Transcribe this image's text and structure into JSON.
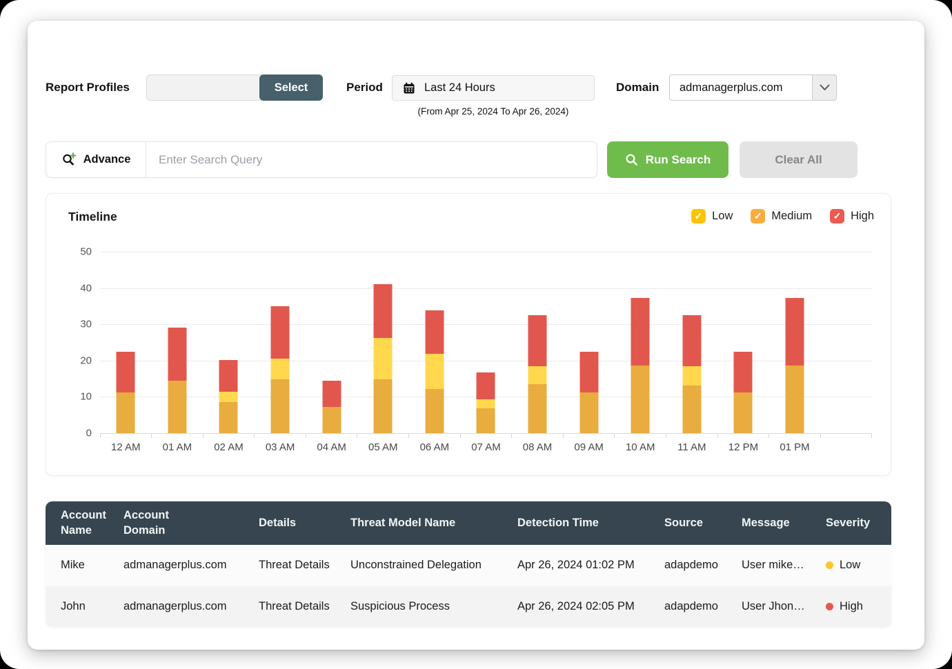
{
  "toolbar": {
    "report_profiles_label": "Report Profiles",
    "report_profiles_value": "",
    "select_button": "Select",
    "period_label": "Period",
    "period_value": "Last 24 Hours",
    "period_range": "(From Apr 25, 2024 To Apr 26, 2024)",
    "domain_label": "Domain",
    "domain_value": "admanagerplus.com"
  },
  "search": {
    "advance_label": "Advance",
    "placeholder": "Enter Search Query",
    "query_value": "",
    "run_button": "Run Search",
    "clear_button": "Clear All"
  },
  "chart_data": {
    "type": "bar",
    "stacked": true,
    "title": "Timeline",
    "categories": [
      "12 AM",
      "01 AM",
      "02 AM",
      "03 AM",
      "04 AM",
      "05 AM",
      "06 AM",
      "07 AM",
      "08 AM",
      "09 AM",
      "10 AM",
      "11 AM",
      "12 PM",
      "01 PM"
    ],
    "series": [
      {
        "name": "Low",
        "color": "#E9AC3F",
        "values": [
          11.2,
          14.5,
          8.5,
          14.8,
          7.2,
          14.8,
          12.2,
          6.8,
          13.5,
          11.3,
          18.7,
          13.2,
          11.3,
          18.7
        ]
      },
      {
        "name": "Medium",
        "color": "#FFD84D",
        "values": [
          0,
          0,
          3.0,
          5.7,
          0,
          11.4,
          9.6,
          2.5,
          5.0,
          0,
          0,
          5.3,
          0,
          0
        ]
      },
      {
        "name": "High",
        "color": "#E2574D",
        "values": [
          11.3,
          14.5,
          8.7,
          14.5,
          7.3,
          14.8,
          12.0,
          7.4,
          14.0,
          11.2,
          18.6,
          14.0,
          11.2,
          18.6
        ]
      }
    ],
    "legend": [
      {
        "label": "Low",
        "color": "#FFC400"
      },
      {
        "label": "Medium",
        "color": "#FBAD3C"
      },
      {
        "label": "High",
        "color": "#EC5B52"
      }
    ],
    "legend_position": "top-right",
    "grid": true,
    "xlabel": "",
    "ylabel": "",
    "ylim": [
      0,
      50
    ],
    "yticks": [
      0,
      10,
      20,
      30,
      40,
      50
    ]
  },
  "table": {
    "headers": [
      "Account Name",
      "Account Domain",
      "Details",
      "Threat Model Name",
      "Detection Time",
      "Source",
      "Message",
      "Severity"
    ],
    "rows": [
      {
        "account_name": "Mike",
        "account_domain": "admanagerplus.com",
        "details": "Threat Details",
        "threat_model": "Unconstrained Delegation",
        "detection_time": "Apr 26, 2024 01:02 PM",
        "source": "adapdemo",
        "message": "User mike…",
        "severity": "Low",
        "severity_color": "#F9C62E"
      },
      {
        "account_name": "John",
        "account_domain": "admanagerplus.com",
        "details": "Threat Details",
        "threat_model": "Suspicious Process",
        "detection_time": "Apr 26, 2024 02:05 PM",
        "source": "adapdemo",
        "message": "User Jhon…",
        "severity": "High",
        "severity_color": "#E4574F"
      }
    ]
  }
}
